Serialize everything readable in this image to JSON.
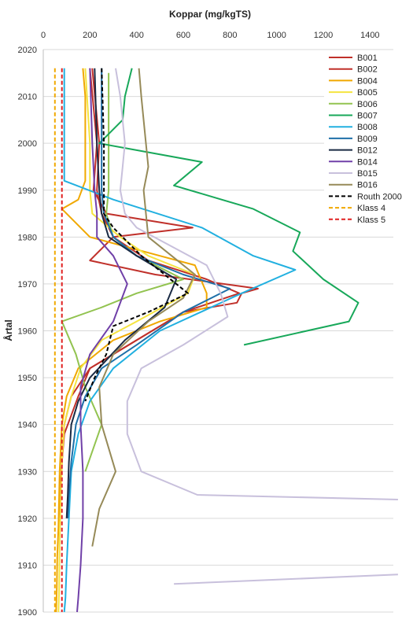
{
  "chart_data": {
    "type": "line",
    "title": "Koppar (mg/kgTS)",
    "ylabel": "Årtal",
    "xlim": [
      0,
      1500
    ],
    "ylim": [
      1900,
      2020
    ],
    "x_axis_position": "top",
    "x_ticks": [
      0,
      200,
      400,
      600,
      800,
      1000,
      1200,
      1400
    ],
    "y_ticks": [
      1900,
      1910,
      1920,
      1930,
      1940,
      1950,
      1960,
      1970,
      1980,
      1990,
      2000,
      2010,
      2020
    ],
    "grid": "horizontal",
    "legend_position": "right",
    "series": [
      {
        "name": "B001",
        "color": "#c0302a",
        "dash": false,
        "points": [
          [
            200,
            2016
          ],
          [
            230,
            2000
          ],
          [
            215,
            1990
          ],
          [
            270,
            1985
          ],
          [
            640,
            1982
          ],
          [
            300,
            1980
          ],
          [
            200,
            1975
          ],
          [
            480,
            1972
          ],
          [
            920,
            1969
          ],
          [
            850,
            1968
          ],
          [
            830,
            1966
          ],
          [
            600,
            1964
          ],
          [
            400,
            1958
          ],
          [
            200,
            1952
          ],
          [
            150,
            1946
          ],
          [
            120,
            1942
          ],
          [
            90,
            1938
          ],
          [
            80,
            1932
          ],
          [
            75,
            1928
          ],
          [
            72,
            1924
          ],
          [
            70,
            1920
          ]
        ]
      },
      {
        "name": "B002",
        "color": "#c0302a",
        "dash": false,
        "points": [
          [
            210,
            2016
          ],
          [
            240,
            2000
          ],
          [
            230,
            1990
          ],
          [
            250,
            1985
          ],
          [
            300,
            1980
          ],
          [
            450,
            1975
          ],
          [
            700,
            1971
          ],
          [
            840,
            1968
          ],
          [
            600,
            1964
          ],
          [
            400,
            1958
          ],
          [
            200,
            1952
          ],
          [
            120,
            1946
          ],
          [
            90,
            1940
          ],
          [
            80,
            1932
          ],
          [
            75,
            1926
          ],
          [
            70,
            1923
          ]
        ]
      },
      {
        "name": "B004",
        "color": "#f0a800",
        "dash": false,
        "points": [
          [
            170,
            2016
          ],
          [
            180,
            2010
          ],
          [
            180,
            2000
          ],
          [
            180,
            1992
          ],
          [
            150,
            1988
          ],
          [
            80,
            1986
          ],
          [
            200,
            1980
          ],
          [
            500,
            1976
          ],
          [
            650,
            1974
          ],
          [
            700,
            1968
          ],
          [
            700,
            1965
          ],
          [
            500,
            1962
          ],
          [
            300,
            1958
          ],
          [
            150,
            1952
          ],
          [
            100,
            1946
          ],
          [
            80,
            1940
          ],
          [
            70,
            1930
          ],
          [
            65,
            1918
          ],
          [
            60,
            1912
          ],
          [
            58,
            1905
          ],
          [
            55,
            1900
          ]
        ]
      },
      {
        "name": "B005",
        "color": "#f5e440",
        "dash": false,
        "points": [
          [
            180,
            2016
          ],
          [
            200,
            2000
          ],
          [
            200,
            1990
          ],
          [
            210,
            1985
          ],
          [
            330,
            1980
          ],
          [
            450,
            1976
          ],
          [
            650,
            1972
          ],
          [
            620,
            1968
          ],
          [
            400,
            1962
          ],
          [
            250,
            1958
          ],
          [
            160,
            1952
          ],
          [
            120,
            1946
          ],
          [
            90,
            1940
          ],
          [
            80,
            1932
          ],
          [
            75,
            1925
          ],
          [
            70,
            1915
          ],
          [
            68,
            1905
          ],
          [
            65,
            1900
          ]
        ]
      },
      {
        "name": "B006",
        "color": "#92c350",
        "dash": false,
        "points": [
          [
            280,
            2015
          ],
          [
            280,
            2000
          ],
          [
            280,
            1990
          ],
          [
            270,
            1985
          ],
          [
            300,
            1980
          ],
          [
            400,
            1976
          ],
          [
            600,
            1971
          ],
          [
            400,
            1968
          ],
          [
            250,
            1965
          ],
          [
            80,
            1962
          ],
          [
            140,
            1955
          ],
          [
            180,
            1948
          ],
          [
            250,
            1940
          ],
          [
            180,
            1930
          ]
        ]
      },
      {
        "name": "B007",
        "color": "#18a85a",
        "dash": false,
        "points": [
          [
            380,
            2016
          ],
          [
            350,
            2010
          ],
          [
            340,
            2005
          ],
          [
            240,
            2000
          ],
          [
            680,
            1996
          ],
          [
            560,
            1991
          ],
          [
            900,
            1986
          ],
          [
            1100,
            1981
          ],
          [
            1070,
            1977
          ],
          [
            1200,
            1971
          ],
          [
            1350,
            1966
          ],
          [
            1310,
            1962
          ],
          [
            860,
            1957
          ]
        ]
      },
      {
        "name": "B008",
        "color": "#22b0e0",
        "dash": false,
        "points": [
          [
            90,
            2016
          ],
          [
            90,
            2000
          ],
          [
            90,
            1992
          ],
          [
            300,
            1988
          ],
          [
            680,
            1982
          ],
          [
            900,
            1976
          ],
          [
            1080,
            1973
          ],
          [
            850,
            1968
          ],
          [
            500,
            1960
          ],
          [
            300,
            1952
          ],
          [
            200,
            1945
          ],
          [
            150,
            1938
          ],
          [
            120,
            1930
          ],
          [
            110,
            1920
          ],
          [
            100,
            1910
          ],
          [
            95,
            1903
          ],
          [
            90,
            1900
          ]
        ]
      },
      {
        "name": "B009",
        "color": "#1e6fa8",
        "dash": false,
        "points": [
          [
            250,
            2016
          ],
          [
            250,
            2000
          ],
          [
            250,
            1990
          ],
          [
            260,
            1985
          ],
          [
            300,
            1980
          ],
          [
            400,
            1976
          ],
          [
            600,
            1972
          ],
          [
            800,
            1969
          ],
          [
            600,
            1964
          ],
          [
            400,
            1957
          ],
          [
            250,
            1952
          ],
          [
            180,
            1946
          ],
          [
            140,
            1940
          ],
          [
            120,
            1932
          ],
          [
            110,
            1925
          ],
          [
            105,
            1920
          ]
        ]
      },
      {
        "name": "B012",
        "color": "#1a2a44",
        "dash": false,
        "points": [
          [
            220,
            2016
          ],
          [
            230,
            2000
          ],
          [
            240,
            1990
          ],
          [
            250,
            1985
          ],
          [
            280,
            1980
          ],
          [
            400,
            1976
          ],
          [
            570,
            1971
          ],
          [
            520,
            1965
          ],
          [
            350,
            1958
          ],
          [
            200,
            1950
          ],
          [
            150,
            1945
          ],
          [
            120,
            1940
          ],
          [
            110,
            1932
          ],
          [
            105,
            1925
          ],
          [
            100,
            1920
          ]
        ]
      },
      {
        "name": "B014",
        "color": "#7040a8",
        "dash": false,
        "points": [
          [
            200,
            2016
          ],
          [
            210,
            2000
          ],
          [
            220,
            1990
          ],
          [
            230,
            1985
          ],
          [
            230,
            1980
          ],
          [
            300,
            1976
          ],
          [
            360,
            1970
          ],
          [
            300,
            1962
          ],
          [
            200,
            1955
          ],
          [
            160,
            1948
          ],
          [
            160,
            1940
          ],
          [
            170,
            1930
          ],
          [
            170,
            1920
          ],
          [
            160,
            1910
          ],
          [
            150,
            1903
          ],
          [
            145,
            1900
          ]
        ]
      },
      {
        "name": "B015",
        "color": "#c8c0dc",
        "dash": false,
        "points": [
          [
            310,
            2016
          ],
          [
            330,
            2010
          ],
          [
            350,
            2000
          ],
          [
            340,
            1995
          ],
          [
            330,
            1990
          ],
          [
            350,
            1985
          ],
          [
            400,
            1982
          ],
          [
            550,
            1978
          ],
          [
            700,
            1974
          ],
          [
            760,
            1968
          ],
          [
            790,
            1963
          ],
          [
            600,
            1957
          ],
          [
            420,
            1952
          ],
          [
            360,
            1945
          ],
          [
            360,
            1938
          ],
          [
            420,
            1930
          ],
          [
            660,
            1925
          ],
          [
            1520,
            1924
          ]
        ]
      },
      {
        "name": "B016",
        "color": "#968a58",
        "dash": false,
        "points": [
          [
            410,
            2016
          ],
          [
            420,
            2010
          ],
          [
            440,
            2000
          ],
          [
            450,
            1995
          ],
          [
            430,
            1990
          ],
          [
            440,
            1985
          ],
          [
            450,
            1980
          ],
          [
            550,
            1976
          ],
          [
            650,
            1972
          ],
          [
            600,
            1967
          ],
          [
            450,
            1962
          ],
          [
            300,
            1955
          ],
          [
            240,
            1948
          ],
          [
            250,
            1940
          ],
          [
            310,
            1930
          ],
          [
            240,
            1922
          ],
          [
            210,
            1914
          ]
        ]
      },
      {
        "name": "Routh 2000",
        "color": "#000000",
        "dash": true,
        "points": [
          [
            250,
            2016
          ],
          [
            260,
            2000
          ],
          [
            260,
            1990
          ],
          [
            260,
            1985
          ],
          [
            300,
            1982
          ],
          [
            420,
            1976
          ],
          [
            620,
            1968
          ],
          [
            450,
            1964
          ],
          [
            300,
            1961
          ],
          [
            270,
            1955
          ],
          [
            220,
            1950
          ],
          [
            180,
            1945
          ]
        ]
      },
      {
        "name": "Klass 4",
        "color": "#f0a800",
        "dash": true,
        "points": [
          [
            50,
            2016
          ],
          [
            50,
            1900
          ]
        ]
      },
      {
        "name": "Klass 5",
        "color": "#e02020",
        "dash": true,
        "points": [
          [
            80,
            2016
          ],
          [
            80,
            1900
          ]
        ]
      }
    ],
    "extra_segments": [
      {
        "series": "B015",
        "color": "#c8c0dc",
        "points": [
          [
            560,
            1906
          ],
          [
            1520,
            1908
          ]
        ]
      }
    ]
  }
}
